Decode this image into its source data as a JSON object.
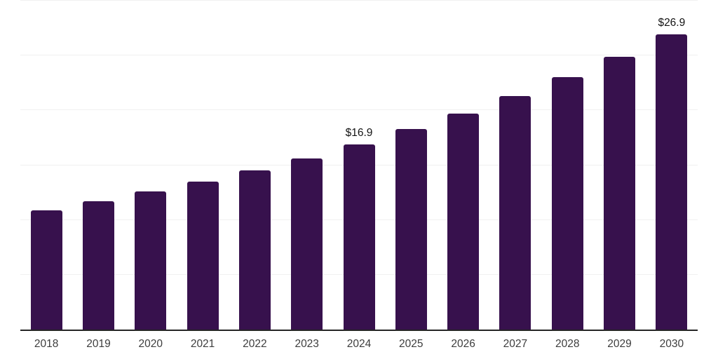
{
  "chart_data": {
    "type": "bar",
    "title": "",
    "xlabel": "",
    "ylabel": "",
    "categories": [
      "2018",
      "2019",
      "2020",
      "2021",
      "2022",
      "2023",
      "2024",
      "2025",
      "2026",
      "2027",
      "2028",
      "2029",
      "2030"
    ],
    "values": [
      10.9,
      11.7,
      12.6,
      13.5,
      14.5,
      15.6,
      16.9,
      18.3,
      19.7,
      21.3,
      23.0,
      24.9,
      26.9
    ],
    "data_labels": [
      null,
      null,
      null,
      null,
      null,
      null,
      "$16.9",
      null,
      null,
      null,
      null,
      null,
      "$26.9"
    ],
    "ylim": [
      0,
      30
    ],
    "grid_step": 5,
    "grid": "horizontal",
    "legend": "none",
    "y_tick_labels_visible": false,
    "colors": {
      "bar": "#37114D",
      "gridline": "#f0f0f0",
      "axis_line": "#262626",
      "tick_label": "#3d3d3d",
      "data_label": "#141414",
      "background": "#ffffff"
    }
  }
}
